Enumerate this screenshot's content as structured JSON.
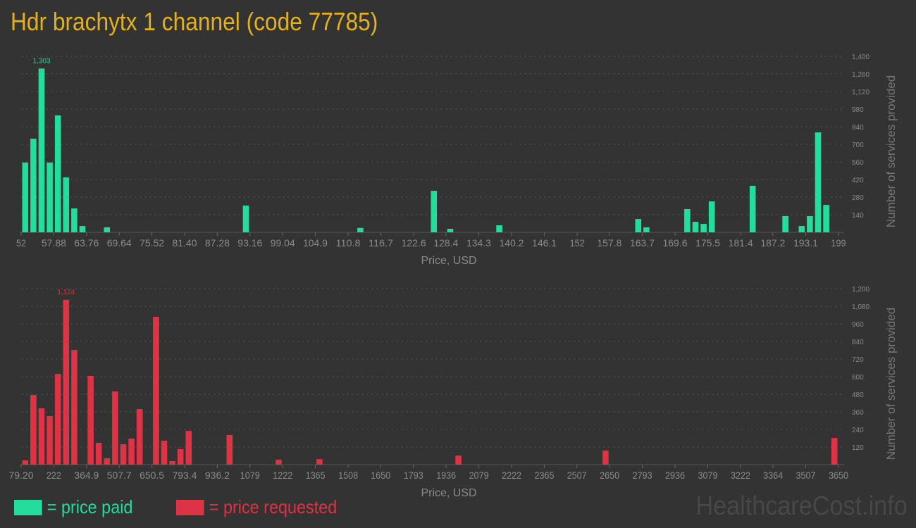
{
  "title": "Hdr brachytx 1 channel (code 77785)",
  "legend": {
    "paid": "= price paid",
    "requested": "= price requested"
  },
  "watermark": "HealthcareCost.info",
  "colors": {
    "paid": "#22dd9c",
    "requested": "#dd3344",
    "title": "#e3b11e"
  },
  "chart_data": [
    {
      "type": "bar",
      "series_key": "paid",
      "xlabel": "Price, USD",
      "ylabel": "Number of services provided",
      "xlim": [
        52,
        199
      ],
      "ylim": [
        0,
        1400
      ],
      "bin_width": 1.47,
      "yticks": [
        140,
        280,
        420,
        560,
        700,
        840,
        980,
        1120,
        1260,
        1400
      ],
      "ytick_labels": [
        "140",
        "280",
        "420",
        "560",
        "700",
        "840",
        "980",
        "1,120",
        "1,260",
        "1,400"
      ],
      "xticks": [
        52,
        57.88,
        63.76,
        69.64,
        75.52,
        81.4,
        87.28,
        93.16,
        99.04,
        104.9,
        110.8,
        116.7,
        122.6,
        128.4,
        134.3,
        140.2,
        146.1,
        152,
        157.8,
        163.7,
        169.6,
        175.5,
        181.4,
        187.2,
        193.1,
        199
      ],
      "xtick_labels": [
        "52",
        "57.88",
        "63.76",
        "69.64",
        "75.52",
        "81.40",
        "87.28",
        "93.16",
        "99.04",
        "104.9",
        "110.8",
        "116.7",
        "122.6",
        "128.4",
        "134.3",
        "140.2",
        "146.1",
        "152",
        "157.8",
        "163.7",
        "169.6",
        "175.5",
        "181.4",
        "187.2",
        "193.1",
        "199"
      ],
      "max_label": "1,303",
      "bars": [
        [
          52,
          555
        ],
        [
          53.47,
          745
        ],
        [
          54.94,
          1303
        ],
        [
          56.41,
          555
        ],
        [
          57.88,
          930
        ],
        [
          59.35,
          437
        ],
        [
          60.82,
          190
        ],
        [
          62.29,
          50
        ],
        [
          66.7,
          40
        ],
        [
          91.69,
          213
        ],
        [
          112.27,
          35
        ],
        [
          125.5,
          330
        ],
        [
          128.44,
          28
        ],
        [
          137.26,
          56
        ],
        [
          162.25,
          106
        ],
        [
          163.72,
          40
        ],
        [
          171.07,
          185
        ],
        [
          172.54,
          84
        ],
        [
          174.01,
          67
        ],
        [
          175.48,
          246
        ],
        [
          182.83,
          370
        ],
        [
          188.71,
          129
        ],
        [
          191.65,
          50
        ],
        [
          193.12,
          129
        ],
        [
          194.59,
          795
        ],
        [
          196.06,
          218
        ]
      ]
    },
    {
      "type": "bar",
      "series_key": "requested",
      "xlabel": "Price, USD",
      "ylabel": "Number of services provided",
      "xlim": [
        79.2,
        3650
      ],
      "ylim": [
        0,
        1200
      ],
      "bin_width": 35.708,
      "yticks": [
        120,
        240,
        360,
        480,
        600,
        720,
        840,
        960,
        1080,
        1200
      ],
      "ytick_labels": [
        "120",
        "240",
        "360",
        "480",
        "600",
        "720",
        "840",
        "960",
        "1,080",
        "1,200"
      ],
      "xticks": [
        79.2,
        222,
        364.9,
        507.7,
        650.5,
        793.4,
        936.2,
        1079,
        1222,
        1365,
        1508,
        1650,
        1793,
        1936,
        2079,
        2222,
        2365,
        2507,
        2650,
        2793,
        2936,
        3079,
        3222,
        3364,
        3507,
        3650
      ],
      "xtick_labels": [
        "79.20",
        "222",
        "364.9",
        "507.7",
        "650.5",
        "793.4",
        "936.2",
        "1079",
        "1222",
        "1365",
        "1508",
        "1650",
        "1793",
        "1936",
        "2079",
        "2222",
        "2365",
        "2507",
        "2650",
        "2793",
        "2936",
        "3079",
        "3222",
        "3364",
        "3507",
        "3650"
      ],
      "max_label": "1,124",
      "bars": [
        [
          79.2,
          29
        ],
        [
          114.9,
          475
        ],
        [
          150.6,
          384
        ],
        [
          186.3,
          331
        ],
        [
          222.0,
          619
        ],
        [
          257.7,
          1124
        ],
        [
          293.4,
          782
        ],
        [
          364.9,
          605
        ],
        [
          400.6,
          149
        ],
        [
          436.3,
          43
        ],
        [
          472.0,
          499
        ],
        [
          507.7,
          139
        ],
        [
          543.4,
          178
        ],
        [
          579.1,
          379
        ],
        [
          650.5,
          1008
        ],
        [
          686.2,
          163
        ],
        [
          721.9,
          24
        ],
        [
          757.6,
          106
        ],
        [
          793.4,
          230
        ],
        [
          971.9,
          202
        ],
        [
          1186.2,
          34
        ],
        [
          1364.7,
          38
        ],
        [
          1971.7,
          62
        ],
        [
          2614.5,
          96
        ],
        [
          3614.3,
          182
        ]
      ]
    }
  ]
}
